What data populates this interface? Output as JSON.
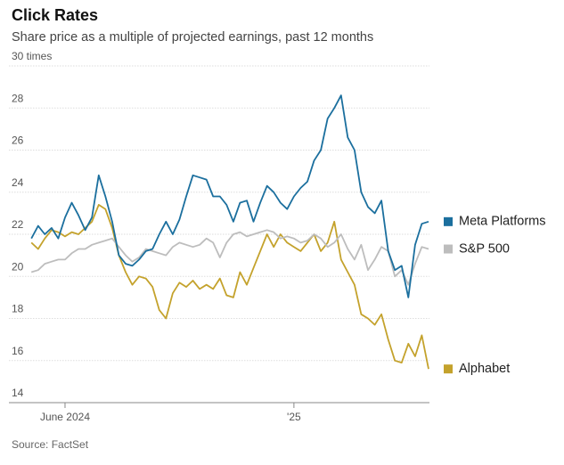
{
  "chart_data": {
    "type": "line",
    "title": "Click Rates",
    "subtitle": "Share price as a multiple of projected earnings, past 12 months",
    "source": "Source: FactSet",
    "categories": [
      null,
      null,
      null,
      null,
      null,
      "June 2024",
      null,
      null,
      null,
      null,
      null,
      null,
      null,
      null,
      null,
      null,
      null,
      null,
      null,
      null,
      null,
      null,
      null,
      null,
      null,
      null,
      null,
      null,
      null,
      null,
      null,
      null,
      null,
      null,
      null,
      null,
      null,
      null,
      null,
      "'25",
      null,
      null,
      null,
      null,
      null,
      null,
      null,
      null,
      null,
      null,
      null,
      null,
      null,
      null,
      null,
      null,
      null,
      null,
      null,
      null
    ],
    "series": [
      {
        "name": "Meta Platforms",
        "color": "#1b6f9e",
        "values": [
          21.8,
          22.4,
          22.0,
          22.3,
          21.8,
          22.8,
          23.5,
          22.9,
          22.2,
          22.8,
          24.8,
          23.8,
          22.6,
          21.0,
          20.6,
          20.5,
          20.8,
          21.2,
          21.3,
          22.0,
          22.6,
          22.0,
          22.7,
          23.8,
          24.8,
          24.7,
          24.6,
          23.8,
          23.8,
          23.4,
          22.6,
          23.5,
          23.6,
          22.6,
          23.5,
          24.3,
          24.0,
          23.5,
          23.2,
          23.8,
          24.2,
          24.5,
          25.5,
          26.0,
          27.5,
          28.0,
          28.6,
          26.6,
          26.0,
          24.0,
          23.3,
          23.0,
          23.6,
          21.2,
          20.3,
          20.5,
          19.0,
          21.5,
          22.5,
          22.6
        ]
      },
      {
        "name": "S&P 500",
        "color": "#bdbdbd",
        "values": [
          20.2,
          20.3,
          20.6,
          20.7,
          20.8,
          20.8,
          21.1,
          21.3,
          21.3,
          21.5,
          21.6,
          21.7,
          21.8,
          21.4,
          21.0,
          20.7,
          20.9,
          21.3,
          21.2,
          21.1,
          21.0,
          21.4,
          21.6,
          21.5,
          21.4,
          21.5,
          21.8,
          21.6,
          20.9,
          21.6,
          22.0,
          22.1,
          21.9,
          22.0,
          22.1,
          22.2,
          22.1,
          21.8,
          21.9,
          21.8,
          21.6,
          21.7,
          22.0,
          21.8,
          21.4,
          21.6,
          22.0,
          21.3,
          20.8,
          21.5,
          20.3,
          20.8,
          21.4,
          21.2,
          20.0,
          20.3,
          19.6,
          20.6,
          21.4,
          21.3
        ]
      },
      {
        "name": "Alphabet",
        "color": "#c4a22c",
        "values": [
          21.6,
          21.3,
          21.8,
          22.2,
          22.1,
          21.9,
          22.1,
          22.0,
          22.3,
          22.6,
          23.4,
          23.2,
          22.3,
          21.0,
          20.2,
          19.6,
          20.0,
          19.9,
          19.5,
          18.4,
          18.0,
          19.2,
          19.7,
          19.5,
          19.8,
          19.4,
          19.6,
          19.4,
          19.9,
          19.1,
          19.0,
          20.2,
          19.6,
          20.4,
          21.2,
          22.0,
          21.4,
          22.0,
          21.6,
          21.4,
          21.2,
          21.6,
          22.0,
          21.2,
          21.6,
          22.6,
          20.8,
          20.2,
          19.6,
          18.2,
          18.0,
          17.7,
          18.2,
          17.0,
          16.0,
          15.9,
          16.8,
          16.2,
          17.2,
          15.6
        ]
      }
    ],
    "ylim": [
      14,
      30
    ],
    "yticks": [
      14,
      16,
      18,
      20,
      22,
      24,
      26,
      28,
      {
        "value": 30,
        "label": "30 times"
      }
    ],
    "grid": true
  }
}
